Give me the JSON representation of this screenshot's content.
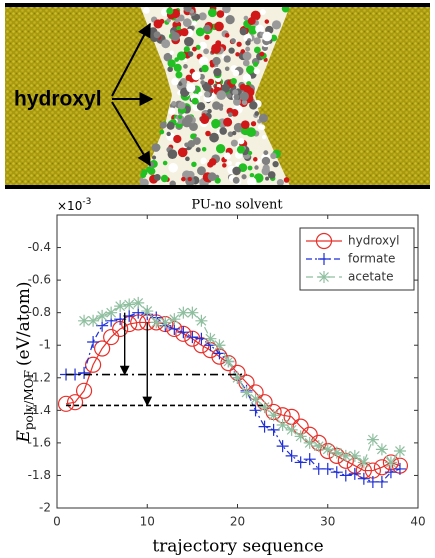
{
  "header": {
    "label": "hydroxyl"
  },
  "chart_data": {
    "type": "line",
    "title": "PU-no solvent",
    "xlabel": "trajectory sequence",
    "ylabel": {
      "main": "E",
      "sub": "poly/MOF",
      "unit": "(eV/atom)"
    },
    "y_multiplier": {
      "base": "×10",
      "exponent": "-3"
    },
    "xlim": [
      0,
      40
    ],
    "xticks": [
      0,
      10,
      20,
      30,
      40
    ],
    "ylim": [
      -2,
      -0.2
    ],
    "yticks": [
      -2,
      -1.8,
      -1.6,
      -1.4,
      -1.2,
      -1,
      -0.8,
      -0.6,
      -0.4
    ],
    "grid": false,
    "legend": "upper right",
    "series": [
      {
        "name": "hydroxyl",
        "color": "#e8302a",
        "marker": "circle",
        "dash": "none",
        "x": [
          1,
          2,
          3,
          4,
          5,
          6,
          7,
          8,
          9,
          10,
          11,
          12,
          13,
          14,
          15,
          16,
          17,
          18,
          19,
          20,
          21,
          22,
          23,
          24,
          25,
          26,
          27,
          28,
          29,
          30,
          31,
          32,
          33,
          34,
          35,
          36,
          37,
          38
        ],
        "values": [
          -1.36,
          -1.35,
          -1.28,
          -1.12,
          -1.02,
          -0.95,
          -0.9,
          -0.87,
          -0.86,
          -0.86,
          -0.86,
          -0.87,
          -0.9,
          -0.93,
          -0.96,
          -1.0,
          -1.03,
          -1.07,
          -1.11,
          -1.17,
          -1.23,
          -1.29,
          -1.35,
          -1.41,
          -1.43,
          -1.44,
          -1.5,
          -1.55,
          -1.6,
          -1.65,
          -1.68,
          -1.71,
          -1.74,
          -1.77,
          -1.77,
          -1.75,
          -1.72,
          -1.74
        ]
      },
      {
        "name": "formate",
        "color": "#1f2fd6",
        "marker": "plus",
        "dash": "6 3 2 3",
        "x": [
          1,
          2,
          3,
          4,
          5,
          6,
          7,
          8,
          9,
          10,
          11,
          12,
          13,
          14,
          15,
          16,
          17,
          18,
          19,
          20,
          21,
          22,
          23,
          24,
          25,
          26,
          27,
          28,
          29,
          30,
          31,
          32,
          33,
          34,
          35,
          36,
          37,
          38
        ],
        "values": [
          -1.18,
          -1.18,
          -1.17,
          -0.98,
          -0.88,
          -0.85,
          -0.84,
          -0.82,
          -0.8,
          -0.81,
          -0.83,
          -0.88,
          -0.9,
          -0.92,
          -0.95,
          -0.96,
          -1.0,
          -1.05,
          -1.1,
          -1.2,
          -1.28,
          -1.4,
          -1.5,
          -1.52,
          -1.62,
          -1.68,
          -1.72,
          -1.7,
          -1.76,
          -1.76,
          -1.78,
          -1.8,
          -1.79,
          -1.82,
          -1.84,
          -1.84,
          -1.78,
          -1.76
        ]
      },
      {
        "name": "acetate",
        "color": "#8fbf9f",
        "marker": "asterisk",
        "dash": "7 4",
        "x": [
          3,
          4,
          5,
          6,
          7,
          8,
          9,
          10,
          11,
          12,
          13,
          14,
          15,
          16,
          17,
          18,
          19,
          20,
          21,
          22,
          23,
          24,
          25,
          26,
          27,
          28,
          29,
          30,
          31,
          32,
          33,
          34,
          35,
          36,
          37,
          38
        ],
        "values": [
          -0.85,
          -0.85,
          -0.82,
          -0.8,
          -0.76,
          -0.75,
          -0.74,
          -0.79,
          -0.86,
          -0.86,
          -0.84,
          -0.8,
          -0.8,
          -0.85,
          -0.96,
          -1.0,
          -1.1,
          -1.2,
          -1.29,
          -1.33,
          -1.38,
          -1.43,
          -1.49,
          -1.52,
          -1.56,
          -1.6,
          -1.62,
          -1.64,
          -1.66,
          -1.68,
          -1.68,
          -1.72,
          -1.58,
          -1.64,
          -1.72,
          -1.65
        ]
      }
    ],
    "reference_lines": [
      {
        "y": -1.18,
        "x": [
          1,
          21
        ],
        "dash": "8 4 2 4"
      },
      {
        "y": -1.37,
        "x": [
          1,
          23
        ],
        "dash": "5 3"
      }
    ],
    "arrows": [
      {
        "x": 7.5,
        "y": [
          -0.8,
          -1.18
        ]
      },
      {
        "x": 10,
        "y": [
          -0.86,
          -1.37
        ]
      }
    ]
  }
}
